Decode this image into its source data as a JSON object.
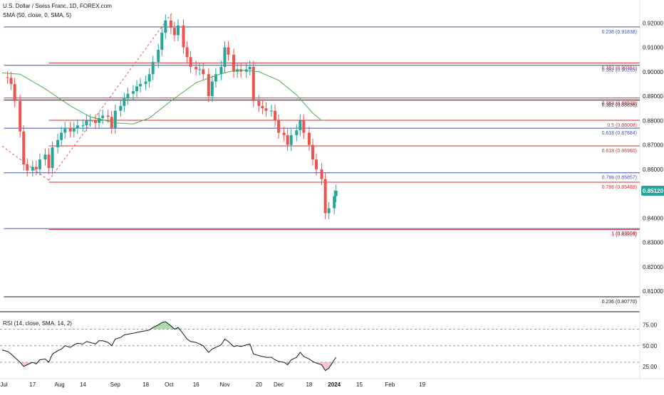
{
  "header": {
    "title": "U.S. Dollar / Swiss Franc, 1D, FOREX.com",
    "sma_label": "SMA (50, close, 0, SMA, 5)",
    "rsi_label": "RSI (14, close, SMA, 14, 2)"
  },
  "colors": {
    "up": "#26a69a",
    "down": "#ef5350",
    "sma": "#4caf50",
    "rsi": "#131722",
    "fib_blue": "#3f51b5",
    "fib_red": "#d32f2f",
    "fib_black": "#131722",
    "price_badge": "#26a69a",
    "rsi_overbought_fill": "#66bb6a",
    "rsi_oversold_fill": "#f48fb1"
  },
  "chart_data": [
    {
      "type": "candlestick",
      "pair": "USD/CHF",
      "timeframe": "1D",
      "current_price": "0.85120",
      "ylim": [
        0.8045,
        0.9265
      ],
      "y_ticks": [
        "0.92000",
        "0.91000",
        "0.90000",
        "0.89000",
        "0.88000",
        "0.87000",
        "0.86000",
        "0.85000",
        "0.84000",
        "0.83000",
        "0.82000",
        "0.81000"
      ],
      "x_ticks": [
        "Jul",
        "17",
        "Aug",
        "14",
        "Sep",
        "18",
        "Oct",
        "16",
        "Nov",
        "20",
        "Dec",
        "18",
        "2024",
        "15",
        "Feb",
        "19"
      ],
      "x_tick_dates": [
        "2023-07-01",
        "2023-07-17",
        "2023-08-01",
        "2023-08-14",
        "2023-09-01",
        "2023-09-18",
        "2023-10-01",
        "2023-10-16",
        "2023-11-01",
        "2023-11-20",
        "2023-12-01",
        "2023-12-18",
        "2024-01-01",
        "2024-01-15",
        "2024-02-01",
        "2024-02-19"
      ],
      "fib_levels": [
        {
          "label": "0.236 (0.91838)",
          "value": 0.91838,
          "color": "#3f51b5",
          "start": "2023-07-01"
        },
        {
          "label": "0.382 (0.90361)",
          "value": 0.90361,
          "color": "#d32f2f",
          "start": "2023-07-26"
        },
        {
          "label": "0.382 (0.90265)",
          "value": 0.90265,
          "color": "#3f51b5",
          "start": "2023-07-01"
        },
        {
          "label": "0.382 (0.88920)",
          "value": 0.8892,
          "color": "#d32f2f",
          "start": "2023-07-01"
        },
        {
          "label": "0.382 (0.88836)",
          "value": 0.88836,
          "color": "#131722",
          "start": "2023-07-01"
        },
        {
          "label": "0.5 (0.88008)",
          "value": 0.88008,
          "color": "#d32f2f",
          "start": "2023-07-26"
        },
        {
          "label": "0.618 (0.87684)",
          "value": 0.87684,
          "color": "#3f51b5",
          "start": "2023-07-01"
        },
        {
          "label": "0.618 (0.86960)",
          "value": 0.8696,
          "color": "#d32f2f",
          "start": "2023-07-26"
        },
        {
          "label": "0.786 (0.85857)",
          "value": 0.85857,
          "color": "#3f51b5",
          "start": "2023-07-01"
        },
        {
          "label": "0.786 (0.85469)",
          "value": 0.85469,
          "color": "#d32f2f",
          "start": "2023-07-26"
        },
        {
          "label": "1 (0.83569)",
          "value": 0.83569,
          "color": "#3f51b5",
          "start": "2023-07-01"
        },
        {
          "label": "1 (0.83525)",
          "value": 0.83525,
          "color": "#d32f2f",
          "start": "2023-07-26"
        },
        {
          "label": "0.236 (0.80770)",
          "value": 0.8077,
          "color": "#131722",
          "start": "2023-07-01"
        }
      ],
      "trend_lines": [
        {
          "from": [
            "2023-06-30",
            0.8695
          ],
          "to": [
            "2023-07-26",
            0.8555
          ]
        },
        {
          "from": [
            "2023-07-26",
            0.8555
          ],
          "to": [
            "2023-10-03",
            0.9245
          ]
        }
      ],
      "close_path": [
        [
          "2023-06-30",
          0.8977
        ],
        [
          "2023-07-03",
          0.8975
        ],
        [
          "2023-07-05",
          0.895
        ],
        [
          "2023-07-07",
          0.888
        ],
        [
          "2023-07-10",
          0.8755
        ],
        [
          "2023-07-12",
          0.862
        ],
        [
          "2023-07-14",
          0.8595
        ],
        [
          "2023-07-17",
          0.861
        ],
        [
          "2023-07-19",
          0.86
        ],
        [
          "2023-07-21",
          0.864
        ],
        [
          "2023-07-24",
          0.866
        ],
        [
          "2023-07-26",
          0.8605
        ],
        [
          "2023-07-28",
          0.869
        ],
        [
          "2023-07-31",
          0.872
        ],
        [
          "2023-08-02",
          0.875
        ],
        [
          "2023-08-04",
          0.877
        ],
        [
          "2023-08-07",
          0.8755
        ],
        [
          "2023-08-09",
          0.877
        ],
        [
          "2023-08-11",
          0.878
        ],
        [
          "2023-08-14",
          0.878
        ],
        [
          "2023-08-16",
          0.88
        ],
        [
          "2023-08-18",
          0.88
        ],
        [
          "2023-08-21",
          0.879
        ],
        [
          "2023-08-23",
          0.881
        ],
        [
          "2023-08-25",
          0.882
        ],
        [
          "2023-08-28",
          0.8815
        ],
        [
          "2023-08-30",
          0.877
        ],
        [
          "2023-09-01",
          0.884
        ],
        [
          "2023-09-04",
          0.886
        ],
        [
          "2023-09-06",
          0.889
        ],
        [
          "2023-09-08",
          0.891
        ],
        [
          "2023-09-11",
          0.892
        ],
        [
          "2023-09-13",
          0.894
        ],
        [
          "2023-09-15",
          0.895
        ],
        [
          "2023-09-18",
          0.896
        ],
        [
          "2023-09-20",
          0.899
        ],
        [
          "2023-09-22",
          0.904
        ],
        [
          "2023-09-25",
          0.909
        ],
        [
          "2023-09-27",
          0.916
        ],
        [
          "2023-09-29",
          0.921
        ],
        [
          "2023-10-02",
          0.918
        ],
        [
          "2023-10-04",
          0.915
        ],
        [
          "2023-10-06",
          0.919
        ],
        [
          "2023-10-09",
          0.91
        ],
        [
          "2023-10-11",
          0.906
        ],
        [
          "2023-10-13",
          0.902
        ],
        [
          "2023-10-16",
          0.901
        ],
        [
          "2023-10-18",
          0.901
        ],
        [
          "2023-10-20",
          0.899
        ],
        [
          "2023-10-23",
          0.89
        ],
        [
          "2023-10-25",
          0.896
        ],
        [
          "2023-10-27",
          0.899
        ],
        [
          "2023-10-30",
          0.902
        ],
        [
          "2023-11-01",
          0.91
        ],
        [
          "2023-11-03",
          0.907
        ],
        [
          "2023-11-06",
          0.9
        ],
        [
          "2023-11-08",
          0.901
        ],
        [
          "2023-11-10",
          0.9
        ],
        [
          "2023-11-13",
          0.901
        ],
        [
          "2023-11-15",
          0.902
        ],
        [
          "2023-11-17",
          0.888
        ],
        [
          "2023-11-20",
          0.886
        ],
        [
          "2023-11-22",
          0.885
        ],
        [
          "2023-11-24",
          0.884
        ],
        [
          "2023-11-27",
          0.884
        ],
        [
          "2023-11-29",
          0.88
        ],
        [
          "2023-12-01",
          0.875
        ],
        [
          "2023-12-04",
          0.874
        ],
        [
          "2023-12-06",
          0.87
        ],
        [
          "2023-12-08",
          0.874
        ],
        [
          "2023-12-11",
          0.876
        ],
        [
          "2023-12-13",
          0.88
        ],
        [
          "2023-12-15",
          0.875
        ],
        [
          "2023-12-18",
          0.87
        ],
        [
          "2023-12-20",
          0.864
        ],
        [
          "2023-12-22",
          0.86
        ],
        [
          "2023-12-25",
          0.856
        ],
        [
          "2023-12-27",
          0.842
        ],
        [
          "2023-12-29",
          0.844
        ],
        [
          "2024-01-01",
          0.849
        ],
        [
          "2024-01-02",
          0.8512
        ]
      ],
      "sma_points": [
        [
          "2023-06-30",
          0.8995
        ],
        [
          "2023-07-10",
          0.899
        ],
        [
          "2023-07-24",
          0.893
        ],
        [
          "2023-08-07",
          0.886
        ],
        [
          "2023-08-18",
          0.8815
        ],
        [
          "2023-09-01",
          0.879
        ],
        [
          "2023-09-11",
          0.8786
        ],
        [
          "2023-09-20",
          0.881
        ],
        [
          "2023-10-02",
          0.888
        ],
        [
          "2023-10-16",
          0.8955
        ],
        [
          "2023-10-30",
          0.8992
        ],
        [
          "2023-11-08",
          0.9008
        ],
        [
          "2023-11-20",
          0.9
        ],
        [
          "2023-12-01",
          0.8965
        ],
        [
          "2023-12-11",
          0.8905
        ],
        [
          "2023-12-20",
          0.883
        ],
        [
          "2023-12-25",
          0.88
        ]
      ]
    },
    {
      "type": "line",
      "indicator": "RSI",
      "ylim": [
        12,
        85
      ],
      "y_ticks": [
        "75.00",
        "50.00",
        "25.00"
      ],
      "levels": [
        70,
        50,
        30
      ],
      "values": [
        [
          "2023-06-30",
          45
        ],
        [
          "2023-07-03",
          43
        ],
        [
          "2023-07-05",
          40
        ],
        [
          "2023-07-07",
          36
        ],
        [
          "2023-07-10",
          30
        ],
        [
          "2023-07-12",
          25
        ],
        [
          "2023-07-14",
          27
        ],
        [
          "2023-07-17",
          30
        ],
        [
          "2023-07-19",
          28
        ],
        [
          "2023-07-21",
          33
        ],
        [
          "2023-07-24",
          34
        ],
        [
          "2023-07-26",
          30
        ],
        [
          "2023-07-28",
          40
        ],
        [
          "2023-07-31",
          44
        ],
        [
          "2023-08-02",
          46
        ],
        [
          "2023-08-04",
          50
        ],
        [
          "2023-08-07",
          48
        ],
        [
          "2023-08-09",
          51
        ],
        [
          "2023-08-11",
          53
        ],
        [
          "2023-08-14",
          52
        ],
        [
          "2023-08-16",
          55
        ],
        [
          "2023-08-18",
          54
        ],
        [
          "2023-08-21",
          52
        ],
        [
          "2023-08-23",
          56
        ],
        [
          "2023-08-25",
          56
        ],
        [
          "2023-08-28",
          54
        ],
        [
          "2023-08-30",
          50
        ],
        [
          "2023-09-01",
          58
        ],
        [
          "2023-09-04",
          60
        ],
        [
          "2023-09-06",
          63
        ],
        [
          "2023-09-08",
          64
        ],
        [
          "2023-09-11",
          65
        ],
        [
          "2023-09-13",
          66
        ],
        [
          "2023-09-15",
          67
        ],
        [
          "2023-09-18",
          68
        ],
        [
          "2023-09-20",
          69
        ],
        [
          "2023-09-22",
          72
        ],
        [
          "2023-09-25",
          75
        ],
        [
          "2023-09-27",
          78
        ],
        [
          "2023-09-29",
          79
        ],
        [
          "2023-10-02",
          74
        ],
        [
          "2023-10-04",
          70
        ],
        [
          "2023-10-06",
          72
        ],
        [
          "2023-10-09",
          64
        ],
        [
          "2023-10-11",
          58
        ],
        [
          "2023-10-13",
          55
        ],
        [
          "2023-10-16",
          54
        ],
        [
          "2023-10-18",
          52
        ],
        [
          "2023-10-20",
          50
        ],
        [
          "2023-10-23",
          42
        ],
        [
          "2023-10-25",
          46
        ],
        [
          "2023-10-27",
          48
        ],
        [
          "2023-10-30",
          51
        ],
        [
          "2023-11-01",
          58
        ],
        [
          "2023-11-03",
          55
        ],
        [
          "2023-11-06",
          49
        ],
        [
          "2023-11-08",
          50
        ],
        [
          "2023-11-10",
          49
        ],
        [
          "2023-11-13",
          51
        ],
        [
          "2023-11-15",
          52
        ],
        [
          "2023-11-17",
          40
        ],
        [
          "2023-11-20",
          38
        ],
        [
          "2023-11-22",
          37
        ],
        [
          "2023-11-24",
          36
        ],
        [
          "2023-11-27",
          36
        ],
        [
          "2023-11-29",
          33
        ],
        [
          "2023-12-01",
          31
        ],
        [
          "2023-12-04",
          30
        ],
        [
          "2023-12-06",
          27
        ],
        [
          "2023-12-08",
          33
        ],
        [
          "2023-12-11",
          36
        ],
        [
          "2023-12-13",
          42
        ],
        [
          "2023-12-15",
          37
        ],
        [
          "2023-12-18",
          34
        ],
        [
          "2023-12-20",
          31
        ],
        [
          "2023-12-22",
          29
        ],
        [
          "2023-12-25",
          27
        ],
        [
          "2023-12-27",
          20
        ],
        [
          "2023-12-29",
          23
        ],
        [
          "2024-01-01",
          33
        ],
        [
          "2024-01-02",
          36
        ]
      ]
    }
  ]
}
